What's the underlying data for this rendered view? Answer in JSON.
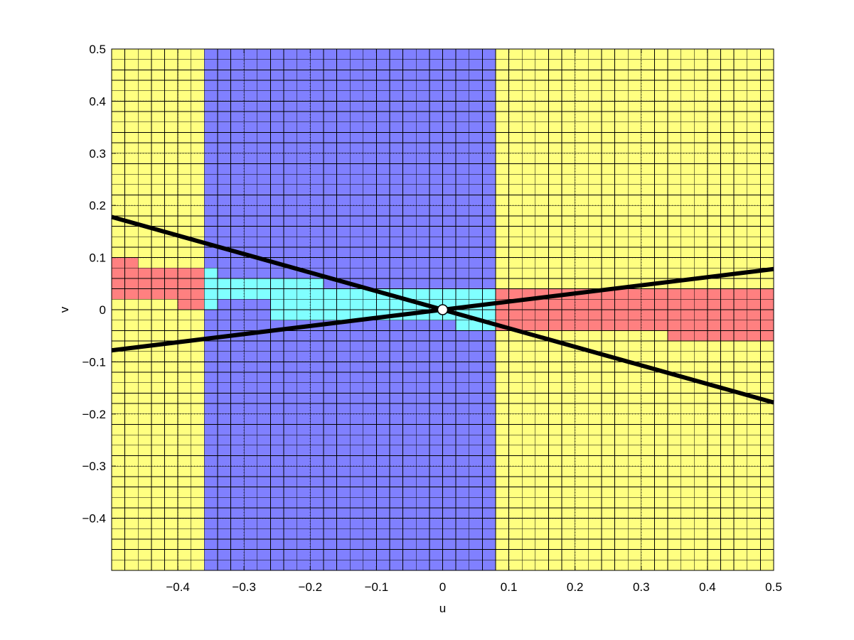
{
  "chart_data": {
    "type": "heatmap",
    "title": "",
    "xlabel": "u",
    "ylabel": "v",
    "xlim": [
      -0.5,
      0.5
    ],
    "ylim": [
      -0.5,
      0.5
    ],
    "xticks": [
      -0.4,
      -0.3,
      -0.2,
      -0.1,
      0,
      0.1,
      0.2,
      0.3,
      0.4,
      0.5
    ],
    "xtick_labels": [
      "−0.4",
      "−0.3",
      "−0.2",
      "−0.1",
      "0",
      "0.1",
      "0.2",
      "0.3",
      "0.4",
      "0.5"
    ],
    "yticks": [
      -0.4,
      -0.3,
      -0.2,
      -0.1,
      0,
      0.1,
      0.2,
      0.3,
      0.4,
      0.5
    ],
    "ytick_labels": [
      "−0.4",
      "−0.3",
      "−0.2",
      "−0.1",
      "0",
      "0.1",
      "0.2",
      "0.3",
      "0.4",
      "0.5"
    ],
    "grid": true,
    "cell_size": 0.02,
    "colors": {
      "yellow": "#ffff80",
      "blue": "#8080ff",
      "cyan": "#80ffff",
      "red": "#ff8080"
    },
    "regions": [
      {
        "color": "yellow",
        "u": [
          -0.5,
          0.5
        ],
        "v": [
          -0.5,
          0.5
        ]
      },
      {
        "color": "blue",
        "u": [
          -0.36,
          0.08
        ],
        "v": [
          -0.5,
          0.5
        ]
      },
      {
        "color": "red",
        "u": [
          -0.5,
          -0.46
        ],
        "v": [
          0.02,
          0.1
        ]
      },
      {
        "color": "red",
        "u": [
          -0.46,
          -0.4
        ],
        "v": [
          0.02,
          0.08
        ]
      },
      {
        "color": "red",
        "u": [
          -0.4,
          -0.36
        ],
        "v": [
          0.0,
          0.08
        ]
      },
      {
        "color": "cyan",
        "u": [
          -0.36,
          -0.34
        ],
        "v": [
          0.0,
          0.08
        ]
      },
      {
        "color": "cyan",
        "u": [
          -0.34,
          -0.26
        ],
        "v": [
          0.02,
          0.06
        ]
      },
      {
        "color": "cyan",
        "u": [
          -0.26,
          -0.18
        ],
        "v": [
          -0.02,
          0.06
        ]
      },
      {
        "color": "cyan",
        "u": [
          -0.18,
          -0.06
        ],
        "v": [
          -0.02,
          0.04
        ]
      },
      {
        "color": "cyan",
        "u": [
          -0.06,
          0.02
        ],
        "v": [
          -0.02,
          0.04
        ]
      },
      {
        "color": "cyan",
        "u": [
          0.02,
          0.08
        ],
        "v": [
          -0.04,
          0.04
        ]
      },
      {
        "color": "red",
        "u": [
          0.08,
          0.34
        ],
        "v": [
          -0.04,
          0.04
        ]
      },
      {
        "color": "red",
        "u": [
          0.34,
          0.5
        ],
        "v": [
          -0.06,
          0.04
        ]
      }
    ],
    "series": [
      {
        "type": "line",
        "color": "#000000",
        "x": [
          -0.5,
          0.5
        ],
        "y": [
          0.178,
          -0.178
        ]
      },
      {
        "type": "line",
        "color": "#000000",
        "x": [
          -0.5,
          0.5
        ],
        "y": [
          -0.078,
          0.078
        ]
      }
    ],
    "marker": {
      "u": 0,
      "v": 0,
      "shape": "circle"
    }
  }
}
